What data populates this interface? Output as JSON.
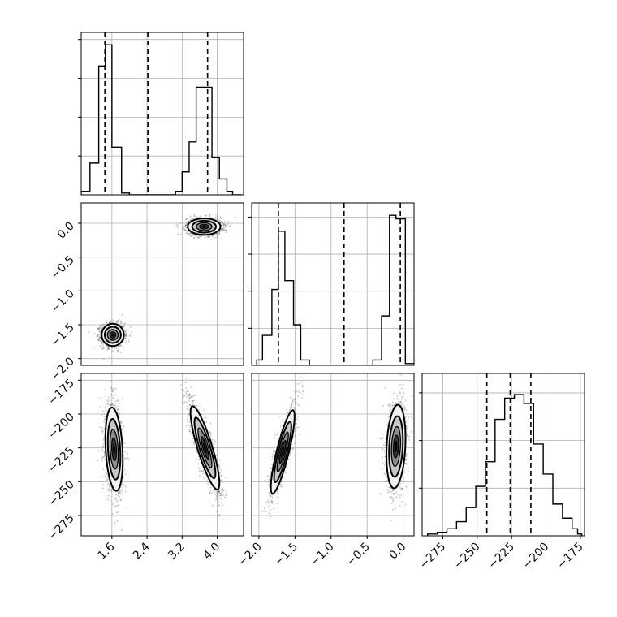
{
  "chart_data": {
    "type": "corner",
    "parameters": [
      "",
      "",
      ""
    ],
    "grid": true,
    "panels": [
      {
        "type": "histogram",
        "row": 0,
        "col": 0,
        "xlim": [
          0.9,
          4.6
        ],
        "bins": [
          [
            0.9,
            0.02
          ],
          [
            1.1,
            0.18
          ],
          [
            1.3,
            0.73
          ],
          [
            1.45,
            0.85
          ],
          [
            1.6,
            0.27
          ],
          [
            1.82,
            0.01
          ],
          [
            2.0,
            0.0
          ],
          [
            2.2,
            0.0
          ],
          [
            2.4,
            0.0
          ],
          [
            2.6,
            0.0
          ],
          [
            2.8,
            0.0
          ],
          [
            3.0,
            0.0
          ],
          [
            3.05,
            0.02
          ],
          [
            3.2,
            0.13
          ],
          [
            3.36,
            0.3
          ],
          [
            3.52,
            0.61
          ],
          [
            3.68,
            0.61
          ],
          [
            3.88,
            0.21
          ],
          [
            4.05,
            0.09
          ],
          [
            4.22,
            0.02
          ],
          [
            4.35,
            0.0
          ]
        ],
        "bin_edge_end": 4.55,
        "quantiles": [
          1.44,
          2.42,
          3.78
        ],
        "yticks": [
          0.22,
          0.44,
          0.66,
          0.88
        ]
      },
      {
        "type": "histogram",
        "row": 1,
        "col": 1,
        "xlim": [
          -2.1,
          0.15
        ],
        "bins": [
          [
            -2.1,
            0.0
          ],
          [
            -2.03,
            0.03
          ],
          [
            -1.95,
            0.17
          ],
          [
            -1.82,
            0.43
          ],
          [
            -1.73,
            0.76
          ],
          [
            -1.64,
            0.48
          ],
          [
            -1.52,
            0.23
          ],
          [
            -1.42,
            0.03
          ],
          [
            -1.3,
            0.0
          ],
          [
            -0.42,
            0.03
          ],
          [
            -0.3,
            0.28
          ],
          [
            -0.19,
            0.85
          ],
          [
            -0.1,
            0.83
          ],
          [
            0.03,
            0.01
          ]
        ],
        "bin_edge_end": 0.15,
        "quantiles": [
          -1.73,
          -0.82,
          -0.04
        ],
        "yticks": [
          0.21,
          0.42,
          0.63,
          0.84
        ]
      },
      {
        "type": "histogram",
        "row": 2,
        "col": 2,
        "xlim": [
          -290,
          -172
        ],
        "bins": [
          [
            -286,
            0.01
          ],
          [
            -279,
            0.02
          ],
          [
            -272,
            0.04
          ],
          [
            -265,
            0.08
          ],
          [
            -258,
            0.16
          ],
          [
            -251,
            0.28
          ],
          [
            -244,
            0.42
          ],
          [
            -237,
            0.66
          ],
          [
            -230,
            0.78
          ],
          [
            -223,
            0.8
          ],
          [
            -216,
            0.75
          ],
          [
            -209,
            0.52
          ],
          [
            -202,
            0.35
          ],
          [
            -195,
            0.18
          ],
          [
            -188,
            0.1
          ],
          [
            -181,
            0.04
          ],
          [
            -177,
            0.01
          ]
        ],
        "bin_edge_end": -174,
        "quantiles": [
          -243,
          -226,
          -211
        ],
        "yticks": [
          0.27,
          0.54,
          0.81
        ]
      },
      {
        "type": "density2d",
        "row": 1,
        "col": 0,
        "xlim": [
          0.9,
          4.6
        ],
        "ylim": [
          -2.1,
          0.3
        ],
        "clusters": [
          {
            "x": 1.62,
            "y": -1.65,
            "sx": 0.115,
            "sy": 0.075,
            "rho": 0.0,
            "n": 1400
          },
          {
            "x": 3.7,
            "y": -0.05,
            "sx": 0.17,
            "sy": 0.055,
            "rho": 0.0,
            "n": 1400
          }
        ]
      },
      {
        "type": "density2d",
        "row": 2,
        "col": 0,
        "xlim": [
          0.9,
          4.6
        ],
        "ylim": [
          -290,
          -170
        ],
        "clusters": [
          {
            "x": 1.65,
            "y": -226,
            "sx": 0.09,
            "sy": 14,
            "rho": -0.25,
            "n": 1400
          },
          {
            "x": 3.72,
            "y": -225,
            "sx": 0.15,
            "sy": 14,
            "rho": -0.85,
            "n": 1400
          }
        ]
      },
      {
        "type": "density2d",
        "row": 2,
        "col": 1,
        "xlim": [
          -2.1,
          0.15
        ],
        "ylim": [
          -290,
          -170
        ],
        "clusters": [
          {
            "x": -1.67,
            "y": -228,
            "sx": 0.075,
            "sy": 14,
            "rho": 0.85,
            "n": 1400
          },
          {
            "x": -0.1,
            "y": -224,
            "sx": 0.06,
            "sy": 14,
            "rho": 0.2,
            "n": 1400
          }
        ]
      }
    ],
    "axis_ticks": {
      "x_col0": [
        1.6,
        2.4,
        3.2,
        4.0
      ],
      "x_col0_labels": [
        "1.6",
        "2.4",
        "3.2",
        "4.0"
      ],
      "x_col1": [
        -2.0,
        -1.5,
        -1.0,
        -0.5,
        0.0
      ],
      "x_col1_labels": [
        "−2.0",
        "−1.5",
        "−1.0",
        "−0.5",
        "0.0"
      ],
      "x_col2": [
        -275,
        -250,
        -225,
        -200,
        -175
      ],
      "x_col2_labels": [
        "−275",
        "−250",
        "−225",
        "−200",
        "−175"
      ],
      "y_row1": [
        0.0,
        -0.5,
        -1.0,
        -1.5,
        -2.0
      ],
      "y_row1_labels": [
        "0.0",
        "−0.5",
        "−1.0",
        "−1.5",
        "−2.0"
      ],
      "y_row2": [
        -175,
        -200,
        -225,
        -250,
        -275
      ],
      "y_row2_labels": [
        "−175",
        "−200",
        "−225",
        "−250",
        "−275"
      ]
    },
    "colors": {
      "line": "#000000",
      "points": "#555555",
      "grid": "#b0b0b0",
      "density_scale": [
        "#f2f2f2",
        "#c8c8c8",
        "#8f8f8f",
        "#3a3a3a",
        "#000000"
      ]
    }
  }
}
